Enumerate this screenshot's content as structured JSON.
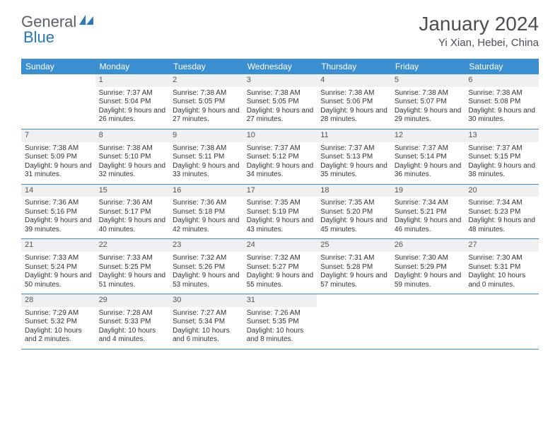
{
  "logo": {
    "text1": "General",
    "text2": "Blue",
    "text1_color": "#5a5f66",
    "text2_color": "#2877b8",
    "shape_color": "#2d78b6"
  },
  "title": "January 2024",
  "location": "Yi Xian, Hebei, China",
  "header_bg": "#3b8fd0",
  "header_fg": "#ffffff",
  "daynum_bg": "#eef0f2",
  "row_border": "#3b8fd0",
  "daysOfWeek": [
    "Sunday",
    "Monday",
    "Tuesday",
    "Wednesday",
    "Thursday",
    "Friday",
    "Saturday"
  ],
  "weeks": [
    [
      {
        "n": "",
        "lines": [
          "",
          "",
          ""
        ]
      },
      {
        "n": "1",
        "lines": [
          "Sunrise: 7:37 AM",
          "Sunset: 5:04 PM",
          "Daylight: 9 hours and 26 minutes."
        ]
      },
      {
        "n": "2",
        "lines": [
          "Sunrise: 7:38 AM",
          "Sunset: 5:05 PM",
          "Daylight: 9 hours and 27 minutes."
        ]
      },
      {
        "n": "3",
        "lines": [
          "Sunrise: 7:38 AM",
          "Sunset: 5:05 PM",
          "Daylight: 9 hours and 27 minutes."
        ]
      },
      {
        "n": "4",
        "lines": [
          "Sunrise: 7:38 AM",
          "Sunset: 5:06 PM",
          "Daylight: 9 hours and 28 minutes."
        ]
      },
      {
        "n": "5",
        "lines": [
          "Sunrise: 7:38 AM",
          "Sunset: 5:07 PM",
          "Daylight: 9 hours and 29 minutes."
        ]
      },
      {
        "n": "6",
        "lines": [
          "Sunrise: 7:38 AM",
          "Sunset: 5:08 PM",
          "Daylight: 9 hours and 30 minutes."
        ]
      }
    ],
    [
      {
        "n": "7",
        "lines": [
          "Sunrise: 7:38 AM",
          "Sunset: 5:09 PM",
          "Daylight: 9 hours and 31 minutes."
        ]
      },
      {
        "n": "8",
        "lines": [
          "Sunrise: 7:38 AM",
          "Sunset: 5:10 PM",
          "Daylight: 9 hours and 32 minutes."
        ]
      },
      {
        "n": "9",
        "lines": [
          "Sunrise: 7:38 AM",
          "Sunset: 5:11 PM",
          "Daylight: 9 hours and 33 minutes."
        ]
      },
      {
        "n": "10",
        "lines": [
          "Sunrise: 7:37 AM",
          "Sunset: 5:12 PM",
          "Daylight: 9 hours and 34 minutes."
        ]
      },
      {
        "n": "11",
        "lines": [
          "Sunrise: 7:37 AM",
          "Sunset: 5:13 PM",
          "Daylight: 9 hours and 35 minutes."
        ]
      },
      {
        "n": "12",
        "lines": [
          "Sunrise: 7:37 AM",
          "Sunset: 5:14 PM",
          "Daylight: 9 hours and 36 minutes."
        ]
      },
      {
        "n": "13",
        "lines": [
          "Sunrise: 7:37 AM",
          "Sunset: 5:15 PM",
          "Daylight: 9 hours and 38 minutes."
        ]
      }
    ],
    [
      {
        "n": "14",
        "lines": [
          "Sunrise: 7:36 AM",
          "Sunset: 5:16 PM",
          "Daylight: 9 hours and 39 minutes."
        ]
      },
      {
        "n": "15",
        "lines": [
          "Sunrise: 7:36 AM",
          "Sunset: 5:17 PM",
          "Daylight: 9 hours and 40 minutes."
        ]
      },
      {
        "n": "16",
        "lines": [
          "Sunrise: 7:36 AM",
          "Sunset: 5:18 PM",
          "Daylight: 9 hours and 42 minutes."
        ]
      },
      {
        "n": "17",
        "lines": [
          "Sunrise: 7:35 AM",
          "Sunset: 5:19 PM",
          "Daylight: 9 hours and 43 minutes."
        ]
      },
      {
        "n": "18",
        "lines": [
          "Sunrise: 7:35 AM",
          "Sunset: 5:20 PM",
          "Daylight: 9 hours and 45 minutes."
        ]
      },
      {
        "n": "19",
        "lines": [
          "Sunrise: 7:34 AM",
          "Sunset: 5:21 PM",
          "Daylight: 9 hours and 46 minutes."
        ]
      },
      {
        "n": "20",
        "lines": [
          "Sunrise: 7:34 AM",
          "Sunset: 5:23 PM",
          "Daylight: 9 hours and 48 minutes."
        ]
      }
    ],
    [
      {
        "n": "21",
        "lines": [
          "Sunrise: 7:33 AM",
          "Sunset: 5:24 PM",
          "Daylight: 9 hours and 50 minutes."
        ]
      },
      {
        "n": "22",
        "lines": [
          "Sunrise: 7:33 AM",
          "Sunset: 5:25 PM",
          "Daylight: 9 hours and 51 minutes."
        ]
      },
      {
        "n": "23",
        "lines": [
          "Sunrise: 7:32 AM",
          "Sunset: 5:26 PM",
          "Daylight: 9 hours and 53 minutes."
        ]
      },
      {
        "n": "24",
        "lines": [
          "Sunrise: 7:32 AM",
          "Sunset: 5:27 PM",
          "Daylight: 9 hours and 55 minutes."
        ]
      },
      {
        "n": "25",
        "lines": [
          "Sunrise: 7:31 AM",
          "Sunset: 5:28 PM",
          "Daylight: 9 hours and 57 minutes."
        ]
      },
      {
        "n": "26",
        "lines": [
          "Sunrise: 7:30 AM",
          "Sunset: 5:29 PM",
          "Daylight: 9 hours and 59 minutes."
        ]
      },
      {
        "n": "27",
        "lines": [
          "Sunrise: 7:30 AM",
          "Sunset: 5:31 PM",
          "Daylight: 10 hours and 0 minutes."
        ]
      }
    ],
    [
      {
        "n": "28",
        "lines": [
          "Sunrise: 7:29 AM",
          "Sunset: 5:32 PM",
          "Daylight: 10 hours and 2 minutes."
        ]
      },
      {
        "n": "29",
        "lines": [
          "Sunrise: 7:28 AM",
          "Sunset: 5:33 PM",
          "Daylight: 10 hours and 4 minutes."
        ]
      },
      {
        "n": "30",
        "lines": [
          "Sunrise: 7:27 AM",
          "Sunset: 5:34 PM",
          "Daylight: 10 hours and 6 minutes."
        ]
      },
      {
        "n": "31",
        "lines": [
          "Sunrise: 7:26 AM",
          "Sunset: 5:35 PM",
          "Daylight: 10 hours and 8 minutes."
        ]
      },
      {
        "n": "",
        "lines": [
          "",
          "",
          ""
        ]
      },
      {
        "n": "",
        "lines": [
          "",
          "",
          ""
        ]
      },
      {
        "n": "",
        "lines": [
          "",
          "",
          ""
        ]
      }
    ]
  ]
}
